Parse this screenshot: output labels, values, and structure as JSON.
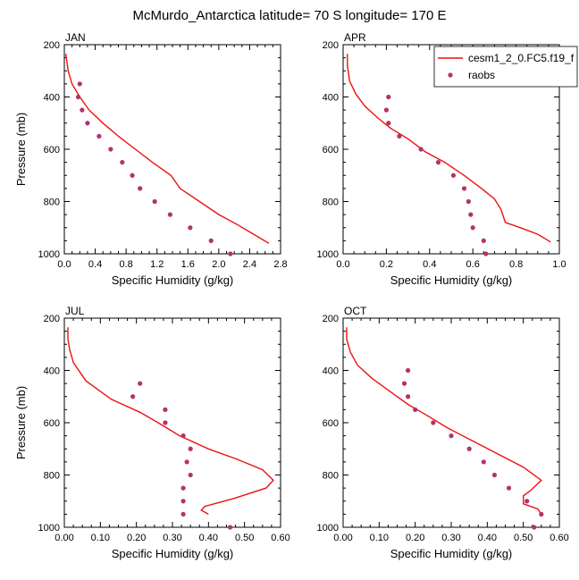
{
  "figure": {
    "title": "McMurdo_Antarctica  latitude= 70 S longitude= 170 E",
    "legend": {
      "placement": "top-right of APR panel",
      "entries": [
        "cesm1_2_0.FC5.f19_f",
        "raobs"
      ]
    },
    "colors": {
      "model_line": "#ee1111",
      "obs_marker": "#b2336b"
    }
  },
  "chart_data": [
    {
      "type": "line+scatter",
      "panel_label": "JAN",
      "xlabel": "Specific Humidity (g/kg)",
      "ylabel": "Pressure (mb)",
      "xlim": [
        0,
        2.8
      ],
      "ylim": [
        1000,
        200
      ],
      "xticks": [
        "0.0",
        "0.4",
        "0.8",
        "1.2",
        "1.6",
        "2.0",
        "2.4",
        "2.8"
      ],
      "yticks": [
        "200",
        "400",
        "600",
        "800",
        "1000"
      ],
      "series": [
        {
          "name": "cesm1_2_0.FC5.f19_f",
          "kind": "line",
          "x": [
            0.02,
            0.03,
            0.05,
            0.1,
            0.2,
            0.32,
            0.5,
            0.7,
            0.92,
            1.14,
            1.38,
            1.5,
            1.75,
            2.0,
            2.25,
            2.45,
            2.65
          ],
          "y": [
            235,
            260,
            300,
            350,
            400,
            450,
            500,
            550,
            600,
            650,
            700,
            750,
            800,
            850,
            890,
            925,
            960
          ]
        },
        {
          "name": "raobs",
          "kind": "markers",
          "x": [
            0.2,
            0.18,
            0.23,
            0.3,
            0.45,
            0.6,
            0.75,
            0.88,
            0.98,
            1.17,
            1.37,
            1.63,
            1.9,
            2.15
          ],
          "y": [
            350,
            400,
            450,
            500,
            550,
            600,
            650,
            700,
            750,
            800,
            850,
            900,
            950,
            1000
          ]
        }
      ]
    },
    {
      "type": "line+scatter",
      "panel_label": "APR",
      "xlabel": "Specific Humidity (g/kg)",
      "ylabel": "",
      "xlim": [
        0,
        1.0
      ],
      "ylim": [
        1000,
        200
      ],
      "xticks": [
        "0.0",
        "0.2",
        "0.4",
        "0.6",
        "0.8",
        "1.0"
      ],
      "yticks": [
        "200",
        "400",
        "600",
        "800",
        "1000"
      ],
      "series": [
        {
          "name": "cesm1_2_0.FC5.f19_f",
          "kind": "line",
          "x": [
            0.02,
            0.02,
            0.03,
            0.06,
            0.1,
            0.16,
            0.22,
            0.3,
            0.38,
            0.47,
            0.56,
            0.64,
            0.7,
            0.73,
            0.75,
            0.82,
            0.9,
            0.96
          ],
          "y": [
            235,
            280,
            340,
            390,
            435,
            480,
            520,
            560,
            610,
            650,
            700,
            750,
            790,
            830,
            880,
            900,
            925,
            955
          ]
        },
        {
          "name": "raobs",
          "kind": "markers",
          "x": [
            0.21,
            0.2,
            0.21,
            0.26,
            0.36,
            0.44,
            0.51,
            0.56,
            0.58,
            0.59,
            0.6,
            0.65,
            0.66
          ],
          "y": [
            400,
            450,
            500,
            550,
            600,
            650,
            700,
            750,
            800,
            850,
            900,
            950,
            1000
          ]
        }
      ]
    },
    {
      "type": "line+scatter",
      "panel_label": "JUL",
      "xlabel": "Specific Humidity (g/kg)",
      "ylabel": "Pressure (mb)",
      "xlim": [
        0,
        0.6
      ],
      "ylim": [
        1000,
        200
      ],
      "xticks": [
        "0.00",
        "0.10",
        "0.20",
        "0.30",
        "0.40",
        "0.50",
        "0.60"
      ],
      "yticks": [
        "200",
        "400",
        "600",
        "800",
        "1000"
      ],
      "series": [
        {
          "name": "cesm1_2_0.FC5.f19_f",
          "kind": "line",
          "x": [
            0.01,
            0.01,
            0.015,
            0.025,
            0.06,
            0.13,
            0.21,
            0.26,
            0.32,
            0.4,
            0.48,
            0.55,
            0.58,
            0.56,
            0.47,
            0.39,
            0.38,
            0.4
          ],
          "y": [
            235,
            280,
            320,
            370,
            440,
            510,
            560,
            600,
            650,
            700,
            740,
            780,
            820,
            850,
            890,
            920,
            935,
            950
          ]
        },
        {
          "name": "raobs",
          "kind": "markers",
          "x": [
            0.21,
            0.19,
            0.28,
            0.28,
            0.33,
            0.35,
            0.34,
            0.35,
            0.33,
            0.33,
            0.33,
            0.46
          ],
          "y": [
            450,
            500,
            550,
            600,
            650,
            700,
            750,
            800,
            850,
            900,
            950,
            1000
          ]
        }
      ]
    },
    {
      "type": "line+scatter",
      "panel_label": "OCT",
      "xlabel": "Specific Humidity (g/kg)",
      "ylabel": "",
      "xlim": [
        0,
        0.6
      ],
      "ylim": [
        1000,
        200
      ],
      "xticks": [
        "0.00",
        "0.10",
        "0.20",
        "0.30",
        "0.40",
        "0.50",
        "0.60"
      ],
      "yticks": [
        "200",
        "400",
        "600",
        "800",
        "1000"
      ],
      "series": [
        {
          "name": "cesm1_2_0.FC5.f19_f",
          "kind": "line",
          "x": [
            0.01,
            0.01,
            0.02,
            0.04,
            0.08,
            0.13,
            0.18,
            0.23,
            0.29,
            0.36,
            0.43,
            0.5,
            0.55,
            0.52,
            0.5,
            0.5,
            0.54,
            0.55
          ],
          "y": [
            235,
            280,
            330,
            380,
            430,
            480,
            530,
            570,
            620,
            670,
            720,
            770,
            820,
            860,
            880,
            910,
            930,
            950
          ]
        },
        {
          "name": "raobs",
          "kind": "markers",
          "x": [
            0.18,
            0.17,
            0.18,
            0.2,
            0.25,
            0.3,
            0.35,
            0.39,
            0.42,
            0.46,
            0.51,
            0.55,
            0.53
          ],
          "y": [
            400,
            450,
            500,
            550,
            600,
            650,
            700,
            750,
            800,
            850,
            900,
            950,
            1000
          ]
        }
      ]
    }
  ]
}
